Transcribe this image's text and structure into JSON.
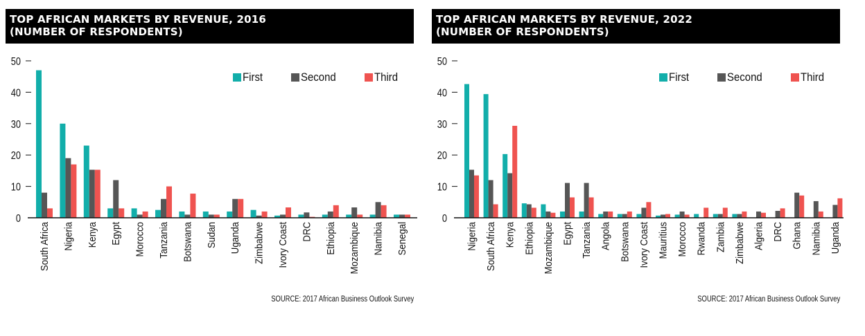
{
  "colors": {
    "first": "#12aeaa",
    "second": "#565656",
    "third": "#ef5350",
    "axis": "#111111"
  },
  "legend": [
    {
      "key": "first",
      "label": "First"
    },
    {
      "key": "second",
      "label": "Second"
    },
    {
      "key": "third",
      "label": "Third"
    }
  ],
  "source": "SOURCE: 2017 African Business Outlook Survey",
  "chart_data": [
    {
      "type": "bar",
      "title_line1": "TOP AFRICAN MARKETS BY REVENUE, 2016",
      "title_line2": "(NUMBER OF RESPONDENTS)",
      "xlabel": "",
      "ylabel": "",
      "ylim": [
        0,
        50
      ],
      "yticks": [
        0,
        10,
        20,
        30,
        40,
        50
      ],
      "grid": false,
      "legend_position": "top-right",
      "categories": [
        "South Africa",
        "Nigeria",
        "Kenya",
        "Egypt",
        "Morocco",
        "Tanzania",
        "Botswana",
        "Sudan",
        "Uganda",
        "Zimbabwe",
        "Ivory Coast",
        "DRC",
        "Ethiopia",
        "Mozambique",
        "Namibia",
        "Senegal"
      ],
      "series": [
        {
          "name": "First",
          "values": [
            47,
            30,
            23,
            3,
            3,
            2.5,
            2,
            2,
            2,
            2.5,
            0.7,
            1,
            1,
            1,
            1,
            1
          ]
        },
        {
          "name": "Second",
          "values": [
            8,
            19,
            15.3,
            12,
            1,
            6,
            1,
            1,
            6,
            0.7,
            1,
            1.7,
            2,
            3.3,
            5,
            1
          ]
        },
        {
          "name": "Third",
          "values": [
            3,
            17,
            15.3,
            3,
            2,
            10,
            7.7,
            1,
            6,
            2,
            3.3,
            0.3,
            4,
            1,
            4,
            1
          ]
        }
      ]
    },
    {
      "type": "bar",
      "title_line1": "TOP AFRICAN MARKETS BY REVENUE, 2022",
      "title_line2": "(NUMBER OF RESPONDENTS)",
      "xlabel": "",
      "ylabel": "",
      "ylim": [
        0,
        50
      ],
      "yticks": [
        0,
        10,
        20,
        30,
        40,
        50
      ],
      "grid": false,
      "legend_position": "top-right",
      "categories": [
        "Nigeria",
        "South Africa",
        "Kenya",
        "Ethiopia",
        "Mozambique",
        "Egypt",
        "Tanzania",
        "Angola",
        "Botswana",
        "Ivory Coast",
        "Mauritius",
        "Morocco",
        "Rwanda",
        "Zambia",
        "Zimbabwe",
        "Algeria",
        "DRC",
        "Ghana",
        "Namibia",
        "Uganda"
      ],
      "series": [
        {
          "name": "First",
          "values": [
            42.6,
            39.4,
            20.3,
            4.6,
            4.3,
            2,
            2,
            1.2,
            1.2,
            1.2,
            0.7,
            1,
            1.2,
            1.2,
            1.2,
            0,
            0,
            0,
            0,
            0
          ]
        },
        {
          "name": "Second",
          "values": [
            15.3,
            12,
            14.2,
            4.3,
            2,
            11.1,
            11.1,
            2,
            1.2,
            3.2,
            1,
            2,
            0,
            1.2,
            1.2,
            2,
            2.2,
            8,
            5.3,
            4.1
          ]
        },
        {
          "name": "Third",
          "values": [
            13.5,
            4.3,
            29.3,
            3.2,
            1.6,
            6.5,
            6.5,
            2,
            2,
            5,
            1.2,
            1,
            3.2,
            3.2,
            2,
            1.6,
            3,
            7.1,
            2,
            6.2
          ]
        }
      ]
    }
  ]
}
